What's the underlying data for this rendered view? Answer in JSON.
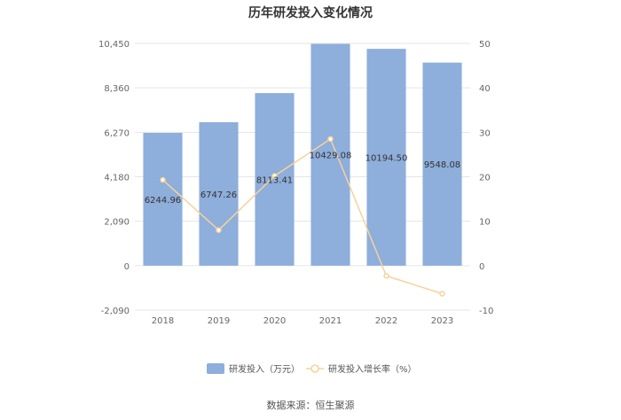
{
  "chart_data": {
    "type": "bar",
    "title": "历年研发投入变化情况",
    "categories": [
      "2018",
      "2019",
      "2020",
      "2021",
      "2022",
      "2023"
    ],
    "series": [
      {
        "name": "研发投入（万元）",
        "type": "bar",
        "axis": "left",
        "color": "#8eaedb",
        "values": [
          6244.96,
          6747.26,
          8113.41,
          10429.08,
          10194.5,
          9548.08
        ],
        "labels": [
          "6244.96",
          "6747.26",
          "8113.41",
          "10429.08",
          "10194.50",
          "9548.08"
        ]
      },
      {
        "name": "研发投入增长率（%）",
        "type": "line",
        "axis": "right",
        "color": "#f5d39a",
        "values": [
          19.3,
          8.0,
          20.2,
          28.5,
          -2.3,
          -6.3
        ]
      }
    ],
    "y_left": {
      "ylim": [
        -2090,
        10450
      ],
      "ticks": [
        -2090,
        0,
        2090,
        4180,
        6270,
        8360,
        10450
      ],
      "tick_labels": [
        "-2,090",
        "0",
        "2,090",
        "4,180",
        "6,270",
        "8,360",
        "10,450"
      ]
    },
    "y_right": {
      "ylim": [
        -10,
        50
      ],
      "ticks": [
        -10,
        0,
        10,
        20,
        30,
        40,
        50
      ],
      "tick_labels": [
        "-10",
        "0",
        "10",
        "20",
        "30",
        "40",
        "50"
      ]
    },
    "grid": true,
    "legend_position": "bottom",
    "source": "数据来源：恒生聚源"
  }
}
